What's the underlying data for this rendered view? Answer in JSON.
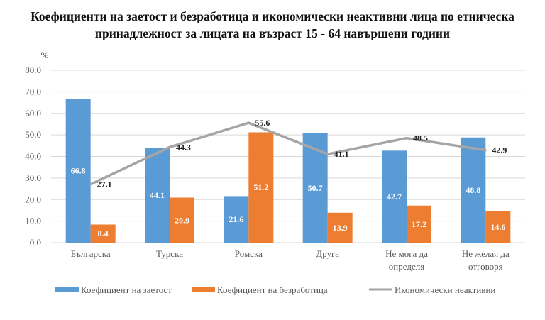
{
  "chart_data": {
    "type": "bar",
    "title_lines": [
      "Коефициенти на заетост и безработица и икономически неактивни лица по етническа",
      "принадлежност за лицата на възраст 15 - 64 навършени години"
    ],
    "ylabel": "%",
    "ylim": [
      0,
      80
    ],
    "yticks": [
      "0.0",
      "10.0",
      "20.0",
      "30.0",
      "40.0",
      "50.0",
      "60.0",
      "70.0",
      "80.0"
    ],
    "grid": true,
    "legend_position": "bottom",
    "categories": [
      [
        "Българска"
      ],
      [
        "Турска"
      ],
      [
        "Ромска"
      ],
      [
        "Друга"
      ],
      [
        "Не мога да",
        "определя"
      ],
      [
        "Не желая да",
        "отговоря"
      ]
    ],
    "series": [
      {
        "name": "Коефициент на заетост",
        "type": "bar",
        "color": "#5B9BD5",
        "values": [
          66.8,
          44.1,
          21.6,
          50.7,
          42.7,
          48.8
        ]
      },
      {
        "name": "Коефициент на безработица",
        "type": "bar",
        "color": "#ED7D31",
        "values": [
          8.4,
          20.9,
          51.2,
          13.9,
          17.2,
          14.6
        ]
      },
      {
        "name": "Икономически неактивни",
        "type": "line",
        "color": "#A5A5A5",
        "values": [
          27.1,
          44.3,
          55.6,
          41.1,
          48.5,
          42.9
        ]
      }
    ]
  }
}
